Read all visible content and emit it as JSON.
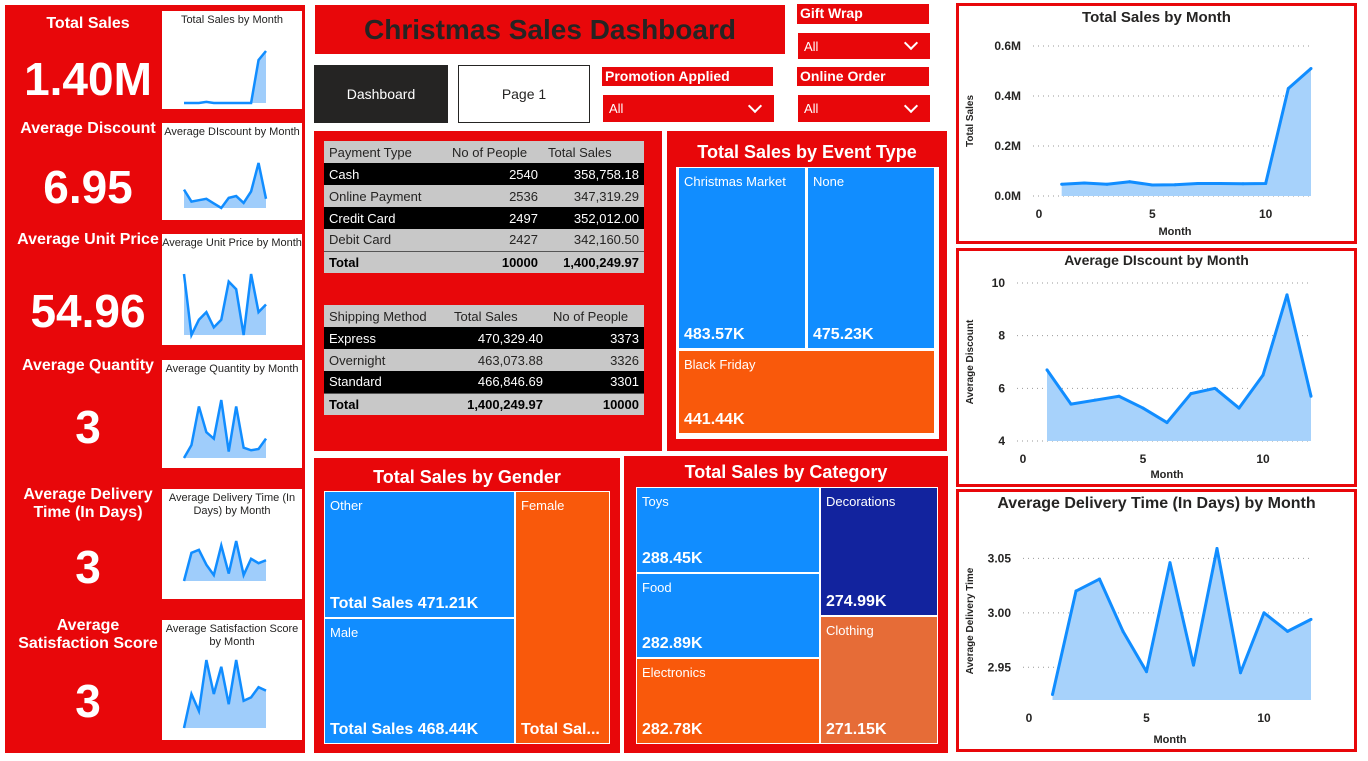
{
  "header": {
    "title": "Christmas Sales Dashboard"
  },
  "nav": {
    "dashboard": "Dashboard",
    "page1": "Page 1"
  },
  "slicers": {
    "gift_wrap": {
      "label": "Gift Wrap",
      "value": "All"
    },
    "promotion": {
      "label": "Promotion Applied",
      "value": "All"
    },
    "online": {
      "label": "Online Order",
      "value": "All"
    }
  },
  "kpis": [
    {
      "label": "Total Sales",
      "value": "1.40M",
      "spark_title": "Total Sales by Month",
      "spark": [
        0.05,
        0.05,
        0.05,
        0.06,
        0.05,
        0.05,
        0.05,
        0.05,
        0.05,
        0.05,
        0.43,
        0.51
      ]
    },
    {
      "label": "Average Discount",
      "value": "6.95",
      "spark_title": "Average DIscount by Month",
      "spark": [
        6.7,
        5.4,
        5.55,
        5.7,
        5.2,
        4.7,
        5.8,
        6.0,
        5.25,
        6.5,
        9.6,
        5.7
      ]
    },
    {
      "label": "Average Unit Price",
      "value": "54.96",
      "spark_title": "Average Unit Price by Month",
      "spark": [
        58,
        50,
        52,
        53,
        51,
        52,
        57,
        56,
        50,
        58,
        53,
        54
      ]
    },
    {
      "label": "Average Quantity",
      "value": "3",
      "spark_title": "Average Quantity by Month",
      "spark": [
        2.9,
        3.0,
        3.3,
        3.1,
        3.05,
        3.35,
        2.95,
        3.3,
        2.98,
        2.96,
        2.97,
        3.05
      ]
    },
    {
      "label": "Average Delivery Time (In Days)",
      "value": "3",
      "spark_title": "Average Delivery Time (In Days) by Month",
      "spark": [
        2.925,
        3.02,
        3.03,
        2.98,
        2.945,
        3.045,
        2.95,
        3.06,
        2.945,
        3.0,
        2.985,
        2.995
      ]
    },
    {
      "label": "Average Satisfaction Score",
      "value": "3",
      "spark_title": "Average Satisfaction Score by Month",
      "spark": [
        2.9,
        3.0,
        2.95,
        3.1,
        3.0,
        3.08,
        2.97,
        3.1,
        2.98,
        2.99,
        3.02,
        3.01
      ]
    }
  ],
  "payment_table": {
    "headers": [
      "Payment Type",
      "No of People",
      "Total Sales"
    ],
    "rows": [
      [
        "Cash",
        "2540",
        "358,758.18"
      ],
      [
        "Online Payment",
        "2536",
        "347,319.29"
      ],
      [
        "Credit Card",
        "2497",
        "352,012.00"
      ],
      [
        "Debit Card",
        "2427",
        "342,160.50"
      ]
    ],
    "total": [
      "Total",
      "10000",
      "1,400,249.97"
    ]
  },
  "shipping_table": {
    "headers": [
      "Shipping Method",
      "Total Sales",
      "No of People"
    ],
    "rows": [
      [
        "Express",
        "470,329.40",
        "3373"
      ],
      [
        "Overnight",
        "463,073.88",
        "3326"
      ],
      [
        "Standard",
        "466,846.69",
        "3301"
      ]
    ],
    "total": [
      "Total",
      "1,400,249.97",
      "10000"
    ]
  },
  "event_treemap": {
    "title": "Total Sales by Event Type",
    "tiles": [
      {
        "label": "Christmas Market",
        "value": "483.57K",
        "color": "#118dff"
      },
      {
        "label": "None",
        "value": "475.23K",
        "color": "#118dff"
      },
      {
        "label": "Black Friday",
        "value": "441.44K",
        "color": "#f9590b"
      }
    ]
  },
  "gender_treemap": {
    "title": "Total Sales by Gender",
    "tiles": [
      {
        "label": "Other",
        "value": "Total Sales 471.21K",
        "color": "#118dff"
      },
      {
        "label": "Male",
        "value": "Total Sales 468.44K",
        "color": "#118dff"
      },
      {
        "label": "Female",
        "value": "Total Sal...",
        "color": "#f9590b"
      }
    ]
  },
  "category_treemap": {
    "title": "Total Sales by Category",
    "tiles": [
      {
        "label": "Toys",
        "value": "288.45K",
        "color": "#118dff"
      },
      {
        "label": "Food",
        "value": "282.89K",
        "color": "#118dff"
      },
      {
        "label": "Electronics",
        "value": "282.78K",
        "color": "#f9590b"
      },
      {
        "label": "Decorations",
        "value": "274.99K",
        "color": "#12239e"
      },
      {
        "label": "Clothing",
        "value": "271.15K",
        "color": "#e66c37"
      }
    ]
  },
  "chart_data": [
    {
      "type": "area",
      "title": "Total Sales by Month",
      "xlabel": "Month",
      "ylabel": "Total Sales",
      "x": [
        1,
        2,
        3,
        4,
        5,
        6,
        7,
        8,
        9,
        10,
        11,
        12
      ],
      "values": [
        0.047,
        0.052,
        0.047,
        0.057,
        0.044,
        0.045,
        0.05,
        0.05,
        0.049,
        0.05,
        0.43,
        0.51
      ],
      "xlim": [
        0,
        12
      ],
      "ylim": [
        0,
        0.6
      ],
      "yticks": [
        "0.0M",
        "0.2M",
        "0.4M",
        "0.6M"
      ],
      "yticks_v": [
        0,
        0.2,
        0.4,
        0.6
      ],
      "xticks": [
        "0",
        "5",
        "10"
      ],
      "xticks_v": [
        0,
        5,
        10
      ],
      "grid": true,
      "color": "#118dff"
    },
    {
      "type": "area",
      "title": "Average DIscount by Month",
      "xlabel": "Month",
      "ylabel": "Average Discount",
      "x": [
        1,
        2,
        3,
        4,
        5,
        6,
        7,
        8,
        9,
        10,
        11,
        12
      ],
      "values": [
        6.7,
        5.4,
        5.55,
        5.7,
        5.25,
        4.7,
        5.8,
        6.0,
        5.25,
        6.5,
        9.55,
        5.7
      ],
      "xlim": [
        0,
        12
      ],
      "ylim": [
        4,
        10
      ],
      "yticks": [
        "4",
        "6",
        "8",
        "10"
      ],
      "yticks_v": [
        4,
        6,
        8,
        10
      ],
      "xticks": [
        "0",
        "5",
        "10"
      ],
      "xticks_v": [
        0,
        5,
        10
      ],
      "grid": true,
      "color": "#118dff"
    },
    {
      "type": "area",
      "title": "Average Delivery Time (In Days) by Month",
      "xlabel": "Month",
      "ylabel": "Average Delivery Time",
      "x": [
        1,
        2,
        3,
        4,
        5,
        6,
        7,
        8,
        9,
        10,
        11,
        12
      ],
      "values": [
        2.925,
        3.02,
        3.031,
        2.983,
        2.946,
        3.046,
        2.952,
        3.059,
        2.945,
        3.0,
        2.983,
        2.994
      ],
      "xlim": [
        0,
        12
      ],
      "ylim": [
        2.92,
        3.065
      ],
      "yticks": [
        "2.95",
        "3.00",
        "3.05"
      ],
      "yticks_v": [
        2.95,
        3.0,
        3.05
      ],
      "xticks": [
        "0",
        "5",
        "10"
      ],
      "xticks_v": [
        0,
        5,
        10
      ],
      "grid": true,
      "color": "#118dff"
    }
  ]
}
